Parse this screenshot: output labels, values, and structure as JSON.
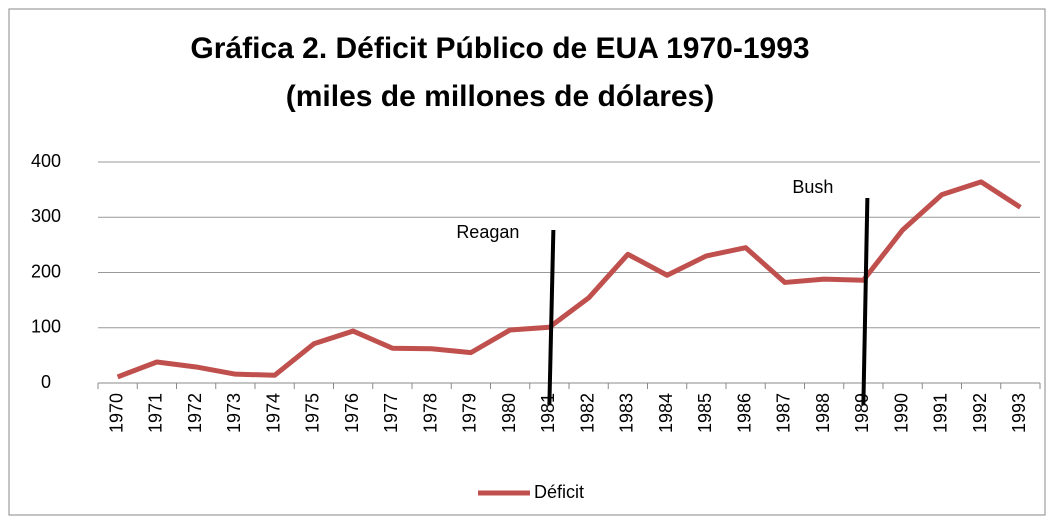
{
  "chart_data": {
    "type": "line",
    "title": "Gráfica 2. Déficit Público de EUA 1970-1993",
    "subtitle": "(miles de millones de dólares)",
    "categories": [
      "1970",
      "1971",
      "1972",
      "1973",
      "1974",
      "1975",
      "1976",
      "1977",
      "1978",
      "1979",
      "1980",
      "1981",
      "1982",
      "1983",
      "1984",
      "1985",
      "1986",
      "1987",
      "1988",
      "1989",
      "1990",
      "1991",
      "1992",
      "1993"
    ],
    "series": [
      {
        "name": "Déficit",
        "color": "#c0504d",
        "values": [
          11,
          38,
          29,
          16,
          14,
          71,
          94,
          63,
          62,
          55,
          96,
          101,
          154,
          233,
          195,
          230,
          245,
          182,
          188,
          186,
          277,
          341,
          364,
          318
        ]
      }
    ],
    "ylim": [
      0,
      400
    ],
    "yticks": [
      0,
      100,
      200,
      300,
      400
    ],
    "grid": true,
    "legend": "bottom",
    "annotations": [
      {
        "text": "Reagan",
        "x": "1981"
      },
      {
        "text": "Bush",
        "x": "1989"
      }
    ]
  }
}
